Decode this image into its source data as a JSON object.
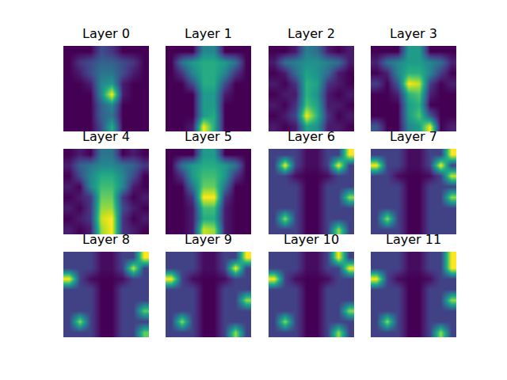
{
  "chart_data": [
    {
      "type": "heatmap",
      "title": "Layer 0",
      "tick_labels": false,
      "cells": [
        [
          0.3,
          0.3,
          0.3,
          0.45,
          0.4,
          0.3,
          0.3,
          0.3
        ],
        [
          0.3,
          0.4,
          0.45,
          0.5,
          0.5,
          0.45,
          0.4,
          0.3
        ],
        [
          0.3,
          0.35,
          0.45,
          0.55,
          0.55,
          0.45,
          0.35,
          0.3
        ],
        [
          0.3,
          0.3,
          0.35,
          0.6,
          0.65,
          0.35,
          0.3,
          0.3
        ],
        [
          0.3,
          0.3,
          0.3,
          0.6,
          0.95,
          0.35,
          0.3,
          0.3
        ],
        [
          0.3,
          0.3,
          0.3,
          0.5,
          0.6,
          0.3,
          0.3,
          0.3
        ],
        [
          0.3,
          0.3,
          0.3,
          0.5,
          0.55,
          0.3,
          0.3,
          0.3
        ],
        [
          0.3,
          0.3,
          0.3,
          0.45,
          0.7,
          0.3,
          0.3,
          0.3
        ]
      ]
    },
    {
      "type": "heatmap",
      "title": "Layer 1",
      "tick_labels": false,
      "cells": [
        [
          0.2,
          0.2,
          0.2,
          0.5,
          0.5,
          0.2,
          0.2,
          0.2
        ],
        [
          0.2,
          0.45,
          0.55,
          0.6,
          0.6,
          0.55,
          0.45,
          0.2
        ],
        [
          0.2,
          0.3,
          0.5,
          0.6,
          0.6,
          0.5,
          0.3,
          0.2
        ],
        [
          0.2,
          0.2,
          0.35,
          0.6,
          0.6,
          0.35,
          0.2,
          0.2
        ],
        [
          0.2,
          0.2,
          0.2,
          0.55,
          0.55,
          0.25,
          0.2,
          0.2
        ],
        [
          0.2,
          0.2,
          0.2,
          0.55,
          0.55,
          0.2,
          0.2,
          0.2
        ],
        [
          0.2,
          0.2,
          0.2,
          0.55,
          0.6,
          0.2,
          0.2,
          0.2
        ],
        [
          0.2,
          0.2,
          0.25,
          0.85,
          0.6,
          0.2,
          0.2,
          0.2
        ]
      ]
    },
    {
      "type": "heatmap",
      "title": "Layer 2",
      "tick_labels": false,
      "cells": [
        [
          0.25,
          0.25,
          0.3,
          0.55,
          0.5,
          0.3,
          0.25,
          0.3
        ],
        [
          0.3,
          0.5,
          0.55,
          0.6,
          0.6,
          0.55,
          0.5,
          0.3
        ],
        [
          0.25,
          0.3,
          0.5,
          0.65,
          0.6,
          0.5,
          0.3,
          0.25
        ],
        [
          0.3,
          0.25,
          0.35,
          0.7,
          0.65,
          0.35,
          0.3,
          0.25
        ],
        [
          0.25,
          0.3,
          0.3,
          0.7,
          0.6,
          0.3,
          0.25,
          0.3
        ],
        [
          0.3,
          0.25,
          0.35,
          0.75,
          0.65,
          0.3,
          0.3,
          0.25
        ],
        [
          0.25,
          0.3,
          0.4,
          0.95,
          0.7,
          0.35,
          0.25,
          0.3
        ],
        [
          0.3,
          0.25,
          0.3,
          0.65,
          0.6,
          0.3,
          0.3,
          0.25
        ]
      ]
    },
    {
      "type": "heatmap",
      "title": "Layer 3",
      "tick_labels": false,
      "cells": [
        [
          0.3,
          0.3,
          0.3,
          0.6,
          0.6,
          0.3,
          0.3,
          0.3
        ],
        [
          0.35,
          0.5,
          0.55,
          0.6,
          0.6,
          0.55,
          0.5,
          0.35
        ],
        [
          0.3,
          0.35,
          0.55,
          0.65,
          0.65,
          0.55,
          0.4,
          0.3
        ],
        [
          0.4,
          0.3,
          0.45,
          0.85,
          0.8,
          0.4,
          0.3,
          0.35
        ],
        [
          0.3,
          0.3,
          0.35,
          0.65,
          0.7,
          0.35,
          0.3,
          0.3
        ],
        [
          0.3,
          0.3,
          0.3,
          0.6,
          0.65,
          0.3,
          0.3,
          0.3
        ],
        [
          0.3,
          0.3,
          0.3,
          0.6,
          0.7,
          0.45,
          0.3,
          0.3
        ],
        [
          0.45,
          0.3,
          0.3,
          0.55,
          0.6,
          0.85,
          0.3,
          0.35
        ]
      ]
    },
    {
      "type": "heatmap",
      "title": "Layer 4",
      "tick_labels": false,
      "cells": [
        [
          0.3,
          0.35,
          0.3,
          0.55,
          0.55,
          0.3,
          0.35,
          0.3
        ],
        [
          0.35,
          0.5,
          0.55,
          0.6,
          0.6,
          0.55,
          0.5,
          0.4
        ],
        [
          0.3,
          0.45,
          0.6,
          0.7,
          0.7,
          0.6,
          0.45,
          0.3
        ],
        [
          0.35,
          0.3,
          0.6,
          0.75,
          0.75,
          0.6,
          0.35,
          0.3
        ],
        [
          0.3,
          0.35,
          0.4,
          0.8,
          0.8,
          0.4,
          0.3,
          0.35
        ],
        [
          0.35,
          0.3,
          0.4,
          0.85,
          0.85,
          0.45,
          0.35,
          0.3
        ],
        [
          0.3,
          0.35,
          0.4,
          0.9,
          0.95,
          0.4,
          0.3,
          0.35
        ],
        [
          0.35,
          0.3,
          0.35,
          0.85,
          0.95,
          0.4,
          0.35,
          0.3
        ]
      ]
    },
    {
      "type": "heatmap",
      "title": "Layer 5",
      "tick_labels": false,
      "cells": [
        [
          0.2,
          0.2,
          0.2,
          0.55,
          0.55,
          0.2,
          0.2,
          0.2
        ],
        [
          0.2,
          0.45,
          0.55,
          0.6,
          0.6,
          0.55,
          0.45,
          0.2
        ],
        [
          0.2,
          0.3,
          0.55,
          0.65,
          0.65,
          0.55,
          0.3,
          0.2
        ],
        [
          0.2,
          0.2,
          0.45,
          0.7,
          0.7,
          0.45,
          0.2,
          0.2
        ],
        [
          0.2,
          0.2,
          0.3,
          0.85,
          0.85,
          0.3,
          0.2,
          0.2
        ],
        [
          0.2,
          0.2,
          0.25,
          0.65,
          0.65,
          0.25,
          0.2,
          0.2
        ],
        [
          0.2,
          0.2,
          0.25,
          0.6,
          0.6,
          0.25,
          0.2,
          0.2
        ],
        [
          0.2,
          0.2,
          0.25,
          0.8,
          0.75,
          0.25,
          0.2,
          0.2
        ]
      ]
    },
    {
      "type": "heatmap",
      "title": "Layer 6",
      "tick_labels": false,
      "cells": [
        [
          0.2,
          0.2,
          0.2,
          0.1,
          0.1,
          0.2,
          0.2,
          0.7
        ],
        [
          0.2,
          0.7,
          0.2,
          0.1,
          0.1,
          0.2,
          0.7,
          0.2
        ],
        [
          0.2,
          0.2,
          0.1,
          0.08,
          0.08,
          0.1,
          0.2,
          0.2
        ],
        [
          0.2,
          0.2,
          0.2,
          0.08,
          0.08,
          0.2,
          0.2,
          0.2
        ],
        [
          0.2,
          0.2,
          0.2,
          0.08,
          0.08,
          0.2,
          0.2,
          0.6
        ],
        [
          0.2,
          0.2,
          0.2,
          0.08,
          0.08,
          0.2,
          0.2,
          0.2
        ],
        [
          0.2,
          0.6,
          0.2,
          0.08,
          0.08,
          0.2,
          0.2,
          0.2
        ],
        [
          0.2,
          0.2,
          0.2,
          0.08,
          0.08,
          0.2,
          0.6,
          0.2
        ]
      ]
    },
    {
      "type": "heatmap",
      "title": "Layer 7",
      "tick_labels": false,
      "cells": [
        [
          0.2,
          0.2,
          0.2,
          0.1,
          0.1,
          0.2,
          0.2,
          0.7
        ],
        [
          0.7,
          0.2,
          0.2,
          0.1,
          0.1,
          0.2,
          0.7,
          0.2
        ],
        [
          0.2,
          0.2,
          0.1,
          0.08,
          0.08,
          0.1,
          0.2,
          0.65
        ],
        [
          0.2,
          0.2,
          0.2,
          0.08,
          0.08,
          0.2,
          0.2,
          0.2
        ],
        [
          0.2,
          0.2,
          0.2,
          0.08,
          0.08,
          0.2,
          0.2,
          0.6
        ],
        [
          0.2,
          0.2,
          0.2,
          0.08,
          0.08,
          0.2,
          0.2,
          0.2
        ],
        [
          0.2,
          0.6,
          0.2,
          0.08,
          0.08,
          0.2,
          0.2,
          0.2
        ],
        [
          0.2,
          0.2,
          0.2,
          0.08,
          0.08,
          0.2,
          0.2,
          0.2
        ]
      ]
    },
    {
      "type": "heatmap",
      "title": "Layer 8",
      "tick_labels": false,
      "cells": [
        [
          0.2,
          0.2,
          0.2,
          0.1,
          0.1,
          0.2,
          0.2,
          0.7
        ],
        [
          0.2,
          0.2,
          0.2,
          0.1,
          0.1,
          0.2,
          0.65,
          0.2
        ],
        [
          0.7,
          0.2,
          0.1,
          0.08,
          0.08,
          0.1,
          0.2,
          0.2
        ],
        [
          0.2,
          0.2,
          0.2,
          0.08,
          0.08,
          0.2,
          0.2,
          0.2
        ],
        [
          0.2,
          0.2,
          0.2,
          0.08,
          0.08,
          0.2,
          0.2,
          0.2
        ],
        [
          0.2,
          0.2,
          0.2,
          0.08,
          0.08,
          0.2,
          0.2,
          0.55
        ],
        [
          0.2,
          0.6,
          0.2,
          0.08,
          0.08,
          0.2,
          0.2,
          0.2
        ],
        [
          0.2,
          0.2,
          0.2,
          0.08,
          0.08,
          0.2,
          0.2,
          0.55
        ]
      ]
    },
    {
      "type": "heatmap",
      "title": "Layer 9",
      "tick_labels": false,
      "cells": [
        [
          0.2,
          0.2,
          0.2,
          0.1,
          0.1,
          0.2,
          0.2,
          0.7
        ],
        [
          0.2,
          0.2,
          0.2,
          0.1,
          0.1,
          0.2,
          0.7,
          0.2
        ],
        [
          0.7,
          0.2,
          0.1,
          0.08,
          0.08,
          0.1,
          0.2,
          0.2
        ],
        [
          0.2,
          0.2,
          0.2,
          0.08,
          0.08,
          0.2,
          0.2,
          0.2
        ],
        [
          0.2,
          0.2,
          0.2,
          0.08,
          0.08,
          0.2,
          0.2,
          0.6
        ],
        [
          0.2,
          0.2,
          0.2,
          0.08,
          0.08,
          0.2,
          0.2,
          0.2
        ],
        [
          0.2,
          0.6,
          0.2,
          0.08,
          0.08,
          0.2,
          0.2,
          0.2
        ],
        [
          0.2,
          0.2,
          0.2,
          0.08,
          0.08,
          0.2,
          0.6,
          0.2
        ]
      ]
    },
    {
      "type": "heatmap",
      "title": "Layer 10",
      "tick_labels": false,
      "cells": [
        [
          0.2,
          0.2,
          0.2,
          0.1,
          0.1,
          0.2,
          0.7,
          0.2
        ],
        [
          0.2,
          0.2,
          0.2,
          0.1,
          0.1,
          0.2,
          0.2,
          0.7
        ],
        [
          0.7,
          0.2,
          0.1,
          0.08,
          0.08,
          0.1,
          0.2,
          0.2
        ],
        [
          0.2,
          0.2,
          0.2,
          0.08,
          0.08,
          0.2,
          0.2,
          0.2
        ],
        [
          0.2,
          0.2,
          0.2,
          0.08,
          0.08,
          0.2,
          0.2,
          0.2
        ],
        [
          0.2,
          0.2,
          0.2,
          0.08,
          0.08,
          0.2,
          0.2,
          0.6
        ],
        [
          0.2,
          0.6,
          0.2,
          0.08,
          0.08,
          0.2,
          0.2,
          0.2
        ],
        [
          0.2,
          0.2,
          0.2,
          0.08,
          0.08,
          0.2,
          0.6,
          0.2
        ]
      ]
    },
    {
      "type": "heatmap",
      "title": "Layer 11",
      "tick_labels": false,
      "cells": [
        [
          0.2,
          0.2,
          0.2,
          0.1,
          0.1,
          0.2,
          0.2,
          0.7
        ],
        [
          0.2,
          0.2,
          0.2,
          0.1,
          0.1,
          0.2,
          0.2,
          0.7
        ],
        [
          0.7,
          0.2,
          0.1,
          0.08,
          0.08,
          0.1,
          0.2,
          0.2
        ],
        [
          0.2,
          0.2,
          0.2,
          0.08,
          0.08,
          0.2,
          0.2,
          0.2
        ],
        [
          0.2,
          0.2,
          0.2,
          0.08,
          0.08,
          0.2,
          0.2,
          0.6
        ],
        [
          0.2,
          0.2,
          0.2,
          0.08,
          0.08,
          0.2,
          0.2,
          0.2
        ],
        [
          0.2,
          0.6,
          0.2,
          0.08,
          0.08,
          0.2,
          0.2,
          0.2
        ],
        [
          0.2,
          0.2,
          0.2,
          0.08,
          0.08,
          0.2,
          0.6,
          0.2
        ]
      ]
    }
  ]
}
